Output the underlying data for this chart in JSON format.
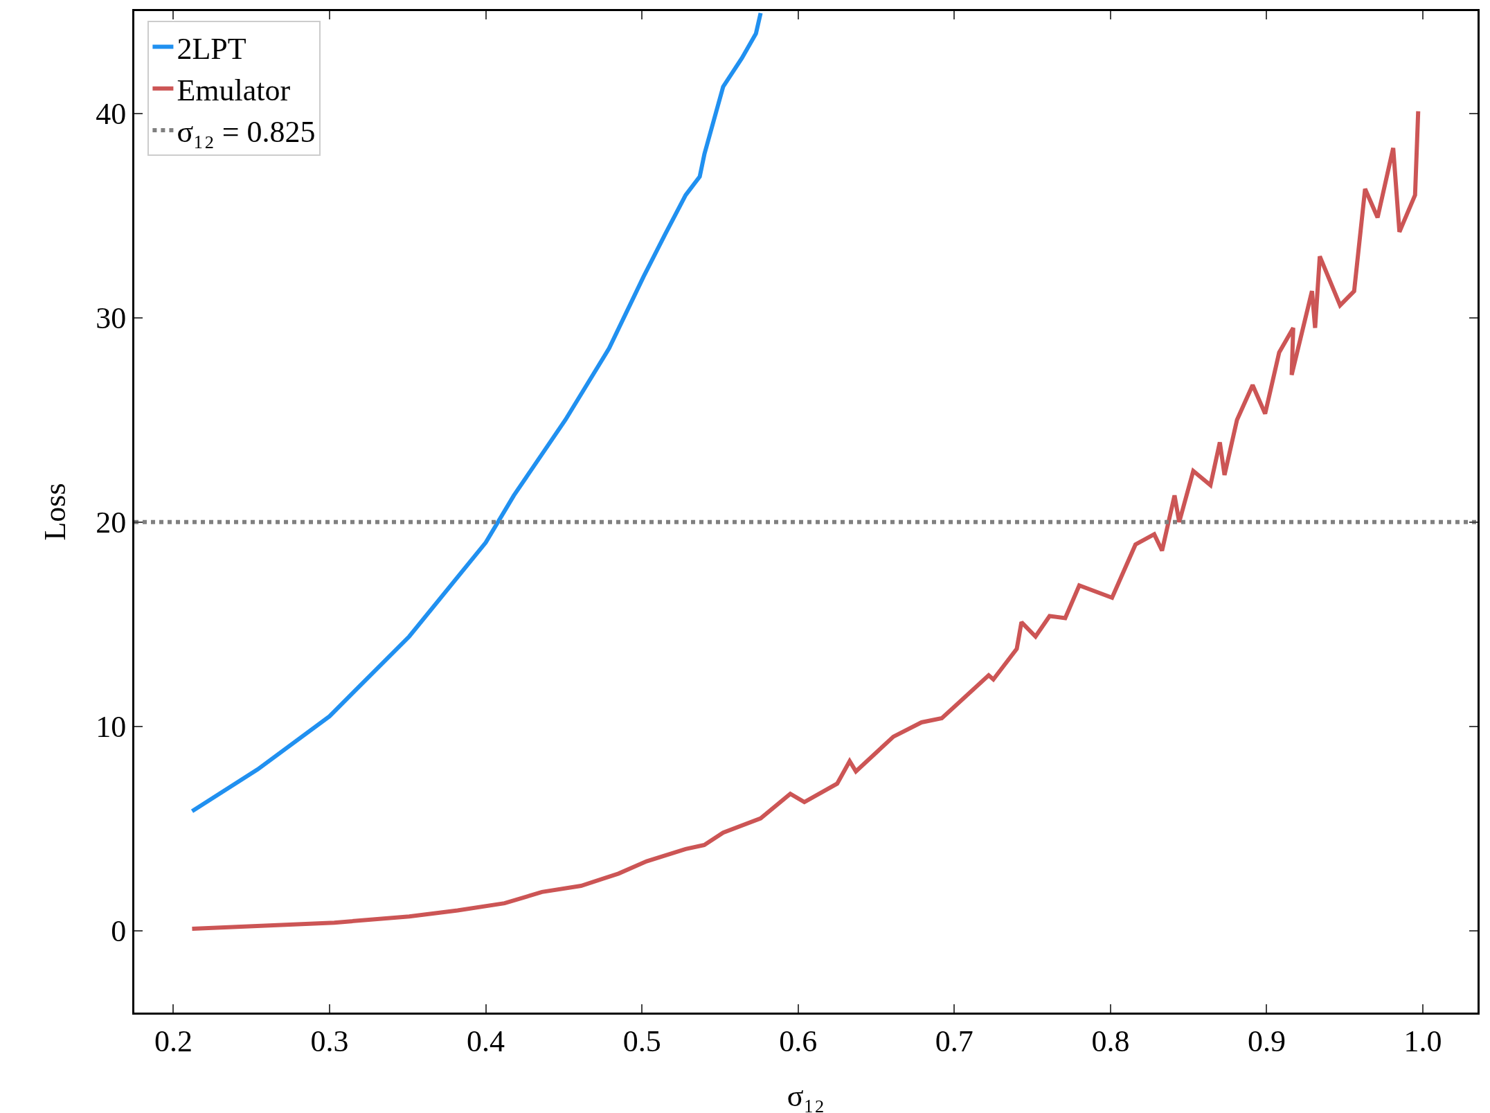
{
  "chart_data": {
    "type": "line",
    "xlabel": "σ₁₂",
    "ylabel": "Loss",
    "xlim": [
      0.175,
      1.035
    ],
    "ylim": [
      -4,
      45
    ],
    "xticks": [
      0.2,
      0.3,
      0.4,
      0.5,
      0.6,
      0.7,
      0.8,
      0.9,
      {
        "value": 1,
        "label": "1.0"
      }
    ],
    "yticks": [
      0,
      10,
      20,
      30,
      40
    ],
    "grid": false,
    "legend": "top left",
    "line_style": "solid",
    "marker": "none",
    "series": [
      {
        "name": "2LPT",
        "color": "#2090f0",
        "x": [
          0.212,
          0.254,
          0.3,
          0.351,
          0.4,
          0.418,
          0.451,
          0.479,
          0.501,
          0.515,
          0.528,
          0.537,
          0.54,
          0.552,
          0.564,
          0.573,
          0.576
        ],
        "values": [
          5.85,
          7.9,
          10.5,
          14.4,
          19.0,
          21.3,
          25.0,
          28.5,
          32.0,
          34.1,
          36.0,
          36.9,
          38.0,
          41.3,
          42.7,
          43.9,
          44.9
        ]
      },
      {
        "name": "Emulator",
        "color": "#cc5555",
        "x": [
          0.212,
          0.303,
          0.351,
          0.382,
          0.412,
          0.436,
          0.461,
          0.485,
          0.503,
          0.528,
          0.54,
          0.552,
          0.576,
          0.595,
          0.604,
          0.625,
          0.633,
          0.637,
          0.661,
          0.679,
          0.692,
          0.722,
          0.725,
          0.74,
          0.743,
          0.752,
          0.761,
          0.771,
          0.78,
          0.801,
          0.816,
          0.828,
          0.833,
          0.841,
          0.844,
          0.853,
          0.864,
          0.87,
          0.873,
          0.881,
          0.891,
          0.899,
          0.908,
          0.917,
          0.916,
          0.929,
          0.931,
          0.934,
          0.947,
          0.956,
          0.963,
          0.971,
          0.981,
          0.985,
          0.995,
          0.997
        ],
        "values": [
          0.1,
          0.4,
          0.7,
          1.0,
          1.35,
          1.9,
          2.2,
          2.8,
          3.4,
          4.0,
          4.2,
          4.8,
          5.5,
          6.7,
          6.3,
          7.2,
          8.3,
          7.8,
          9.5,
          10.2,
          10.4,
          12.5,
          12.3,
          13.8,
          15.1,
          14.4,
          15.4,
          15.3,
          16.9,
          16.3,
          18.9,
          19.4,
          18.6,
          21.3,
          20.0,
          22.5,
          21.8,
          23.9,
          22.3,
          25.0,
          26.7,
          25.3,
          28.3,
          29.5,
          27.2,
          31.3,
          29.5,
          33.0,
          30.6,
          31.3,
          36.3,
          34.9,
          38.3,
          34.2,
          36.0,
          40.1
        ]
      },
      {
        "name": "σ₁₂ = 0.825",
        "color": "#808080",
        "line_style": "dotted",
        "x": [
          0.175,
          1.035
        ],
        "values": [
          20,
          20
        ]
      }
    ]
  }
}
